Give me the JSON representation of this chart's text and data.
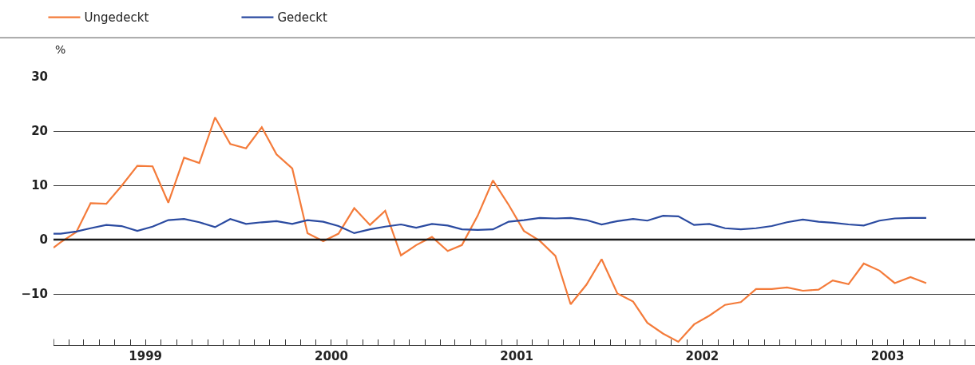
{
  "chart_data": {
    "type": "line",
    "ylabel": "%",
    "x": [
      "1999-01-01",
      "1999-01-15",
      "1999-02-15",
      "1999-03-15",
      "1999-04-15",
      "1999-05-15",
      "1999-06-15",
      "1999-07-15",
      "1999-08-15",
      "1999-09-15",
      "1999-10-15",
      "1999-11-15",
      "1999-12-15",
      "2000-01-15",
      "2000-02-15",
      "2000-03-15",
      "2000-04-15",
      "2000-05-15",
      "2000-06-15",
      "2000-07-15",
      "2000-08-15",
      "2000-09-15",
      "2000-10-15",
      "2000-11-15",
      "2000-12-15",
      "2001-01-15",
      "2001-02-15",
      "2001-03-15",
      "2001-04-15",
      "2001-05-15",
      "2001-06-15",
      "2001-07-15",
      "2001-08-15",
      "2001-09-15",
      "2001-10-15",
      "2001-11-15",
      "2001-12-15",
      "2002-01-15",
      "2002-02-15",
      "2002-03-15",
      "2002-04-15",
      "2002-05-15",
      "2002-06-15",
      "2002-07-15",
      "2002-08-15",
      "2002-09-15",
      "2002-10-15",
      "2002-11-15",
      "2002-12-15",
      "2003-01-15",
      "2003-02-15",
      "2003-03-15",
      "2003-04-15",
      "2003-05-15",
      "2003-06-15",
      "2003-07-15",
      "2003-08-15",
      "2003-09-15"
    ],
    "series": [
      {
        "name": "Ungedeckt",
        "color": "#f47b3a",
        "values": [
          -1.5,
          -0.5,
          1.4,
          6.7,
          6.6,
          9.9,
          13.6,
          13.5,
          6.8,
          15.1,
          14.1,
          22.5,
          17.6,
          16.8,
          20.7,
          15.7,
          13.1,
          1.2,
          -0.3,
          1.1,
          5.8,
          2.7,
          5.3,
          -2.9,
          -1.0,
          0.5,
          -2.1,
          -1.0,
          4.4,
          10.9,
          6.4,
          1.6,
          -0.2,
          -3.0,
          -11.9,
          -8.3,
          -3.6,
          -9.9,
          -11.4,
          -15.3,
          -17.3,
          -18.8,
          -15.6,
          -14.0,
          -12.0,
          -11.5,
          -9.1,
          -9.1,
          -8.8,
          -9.4,
          -9.2,
          -7.5,
          -8.2,
          -4.4,
          -5.7,
          -8.0,
          -6.9,
          -8.0
        ]
      },
      {
        "name": "Gedeckt",
        "color": "#2a4aa0",
        "values": [
          1.1,
          1.1,
          1.5,
          2.1,
          2.7,
          2.5,
          1.6,
          2.4,
          3.6,
          3.8,
          3.2,
          2.3,
          3.8,
          2.9,
          3.2,
          3.4,
          2.9,
          3.6,
          3.3,
          2.5,
          1.2,
          1.9,
          2.4,
          2.8,
          2.2,
          2.9,
          2.6,
          1.9,
          1.8,
          1.9,
          3.3,
          3.6,
          4.0,
          3.9,
          4.0,
          3.6,
          2.8,
          3.4,
          3.8,
          3.5,
          4.4,
          4.3,
          2.7,
          2.9,
          2.1,
          1.9,
          2.1,
          2.5,
          3.2,
          3.7,
          3.3,
          3.1,
          2.8,
          2.6,
          3.5,
          3.9,
          4.0,
          4.0
        ]
      }
    ],
    "xlim": [
      "1999-01-01",
      "2003-12-20"
    ],
    "xticks": [
      {
        "value": "1999-01-01",
        "label": null
      },
      {
        "value": "1999-02-01",
        "label": null
      },
      {
        "value": "1999-03-01",
        "label": null
      },
      {
        "value": "1999-04-01",
        "label": null
      },
      {
        "value": "1999-05-01",
        "label": null
      },
      {
        "value": "1999-06-01",
        "label": null
      },
      {
        "value": "1999-07-01",
        "label": "1999"
      },
      {
        "value": "1999-08-01",
        "label": null
      },
      {
        "value": "1999-09-01",
        "label": null
      },
      {
        "value": "1999-10-01",
        "label": null
      },
      {
        "value": "1999-11-01",
        "label": null
      },
      {
        "value": "1999-12-01",
        "label": null
      },
      {
        "value": "2000-01-01",
        "label": null
      },
      {
        "value": "2000-02-01",
        "label": null
      },
      {
        "value": "2000-03-01",
        "label": null
      },
      {
        "value": "2000-04-01",
        "label": null
      },
      {
        "value": "2000-05-01",
        "label": null
      },
      {
        "value": "2000-06-01",
        "label": null
      },
      {
        "value": "2000-07-01",
        "label": "2000"
      },
      {
        "value": "2000-08-01",
        "label": null
      },
      {
        "value": "2000-09-01",
        "label": null
      },
      {
        "value": "2000-10-01",
        "label": null
      },
      {
        "value": "2000-11-01",
        "label": null
      },
      {
        "value": "2000-12-01",
        "label": null
      },
      {
        "value": "2001-01-01",
        "label": null
      },
      {
        "value": "2001-02-01",
        "label": null
      },
      {
        "value": "2001-03-01",
        "label": null
      },
      {
        "value": "2001-04-01",
        "label": null
      },
      {
        "value": "2001-05-01",
        "label": null
      },
      {
        "value": "2001-06-01",
        "label": null
      },
      {
        "value": "2001-07-01",
        "label": "2001"
      },
      {
        "value": "2001-08-01",
        "label": null
      },
      {
        "value": "2001-09-01",
        "label": null
      },
      {
        "value": "2001-10-01",
        "label": null
      },
      {
        "value": "2001-11-01",
        "label": null
      },
      {
        "value": "2001-12-01",
        "label": null
      },
      {
        "value": "2002-01-01",
        "label": null
      },
      {
        "value": "2002-02-01",
        "label": null
      },
      {
        "value": "2002-03-01",
        "label": null
      },
      {
        "value": "2002-04-01",
        "label": null
      },
      {
        "value": "2002-05-01",
        "label": null
      },
      {
        "value": "2002-06-01",
        "label": null
      },
      {
        "value": "2002-07-01",
        "label": "2002"
      },
      {
        "value": "2002-08-01",
        "label": null
      },
      {
        "value": "2002-09-01",
        "label": null
      },
      {
        "value": "2002-10-01",
        "label": null
      },
      {
        "value": "2002-11-01",
        "label": null
      },
      {
        "value": "2002-12-01",
        "label": null
      },
      {
        "value": "2003-01-01",
        "label": null
      },
      {
        "value": "2003-02-01",
        "label": null
      },
      {
        "value": "2003-03-01",
        "label": null
      },
      {
        "value": "2003-04-01",
        "label": null
      },
      {
        "value": "2003-05-01",
        "label": null
      },
      {
        "value": "2003-06-01",
        "label": null
      },
      {
        "value": "2003-07-01",
        "label": "2003"
      },
      {
        "value": "2003-08-01",
        "label": null
      },
      {
        "value": "2003-09-01",
        "label": null
      },
      {
        "value": "2003-10-01",
        "label": null
      },
      {
        "value": "2003-11-01",
        "label": null
      },
      {
        "value": "2003-12-01",
        "label": null
      }
    ],
    "ylim": [
      -19.4,
      30
    ],
    "yticks": [
      {
        "value": -10,
        "label": "−10"
      },
      0,
      10,
      20,
      30
    ],
    "ref_lines": [
      {
        "axis": "y",
        "value": 0,
        "color": "#1a1a1a"
      }
    ],
    "grid": "y",
    "legend": "top left",
    "marker": "none",
    "line_style": "solid"
  }
}
